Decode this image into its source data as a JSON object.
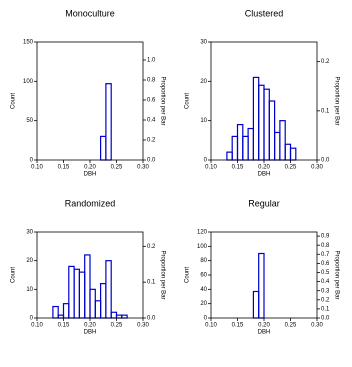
{
  "chart_data": [
    {
      "type": "histogram",
      "title": "Monoculture",
      "xlabel": "DBH",
      "ylabel": "Count",
      "y2label": "Proportion per Bar",
      "bins": [
        0.22,
        0.23,
        0.24
      ],
      "values": [
        30,
        97
      ],
      "color": "#0000cc",
      "xlim": [
        0.1,
        0.3
      ],
      "xticks": [
        {
          "value": 0.1,
          "label": "0.10"
        },
        0.15,
        {
          "value": 0.2,
          "label": "0.20"
        },
        0.25,
        {
          "value": 0.3,
          "label": "0.30"
        }
      ],
      "ylim": [
        0,
        150
      ],
      "yticks": [
        0,
        50,
        100,
        150
      ],
      "y2lim": [
        0,
        1.18
      ],
      "y2ticks": [
        {
          "value": 0,
          "label": "0.0"
        },
        0.2,
        0.4,
        0.6,
        0.8,
        {
          "value": 1,
          "label": "1.0"
        }
      ]
    },
    {
      "type": "histogram",
      "title": "Clustered",
      "xlabel": "DBH",
      "ylabel": "Count",
      "y2label": "Proportion per Bar",
      "bins": [
        0.13,
        0.14,
        0.15,
        0.16,
        0.17,
        0.18,
        0.19,
        0.2,
        0.21,
        0.22,
        0.23,
        0.24,
        0.25,
        0.26
      ],
      "values": [
        2,
        6,
        9,
        6,
        8,
        21,
        19,
        18,
        15,
        7,
        10,
        4,
        3
      ],
      "color": "#0000cc",
      "xlim": [
        0.1,
        0.3
      ],
      "xticks": [
        {
          "value": 0.1,
          "label": "0.10"
        },
        0.15,
        {
          "value": 0.2,
          "label": "0.20"
        },
        0.25,
        {
          "value": 0.3,
          "label": "0.30"
        }
      ],
      "ylim": [
        0,
        30
      ],
      "yticks": [
        0,
        10,
        20,
        30
      ],
      "y2lim": [
        0,
        0.24
      ],
      "y2ticks": [
        {
          "value": 0,
          "label": "0.0"
        },
        0.1,
        0.2
      ]
    },
    {
      "type": "histogram",
      "title": "Randomized",
      "xlabel": "DBH",
      "ylabel": "Count",
      "y2label": "Proportion per Bar",
      "bins": [
        0.13,
        0.14,
        0.15,
        0.16,
        0.17,
        0.18,
        0.19,
        0.2,
        0.21,
        0.22,
        0.23,
        0.24,
        0.25,
        0.26,
        0.27
      ],
      "values": [
        4,
        1,
        5,
        18,
        17,
        16,
        22,
        10,
        6,
        12,
        20,
        2,
        1,
        1
      ],
      "color": "#0000cc",
      "xlim": [
        0.1,
        0.3
      ],
      "xticks": [
        {
          "value": 0.1,
          "label": "0.10"
        },
        0.15,
        {
          "value": 0.2,
          "label": "0.20"
        },
        0.25,
        {
          "value": 0.3,
          "label": "0.30"
        }
      ],
      "ylim": [
        0,
        30
      ],
      "yticks": [
        0,
        10,
        20,
        30
      ],
      "y2lim": [
        0,
        0.24
      ],
      "y2ticks": [
        {
          "value": 0,
          "label": "0.0"
        },
        0.1,
        0.2
      ]
    },
    {
      "type": "histogram",
      "title": "Regular",
      "xlabel": "DBH",
      "ylabel": "Count",
      "y2label": "Proportion per Bar",
      "bins": [
        0.18,
        0.19,
        0.2
      ],
      "values": [
        37,
        90
      ],
      "color": "#0000cc",
      "xlim": [
        0.1,
        0.3
      ],
      "xticks": [
        {
          "value": 0.1,
          "label": "0.10"
        },
        0.15,
        {
          "value": 0.2,
          "label": "0.20"
        },
        0.25,
        {
          "value": 0.3,
          "label": "0.30"
        }
      ],
      "ylim": [
        0,
        120
      ],
      "yticks": [
        0,
        20,
        40,
        60,
        80,
        100,
        120
      ],
      "y2lim": [
        0,
        0.945
      ],
      "y2ticks": [
        {
          "value": 0,
          "label": "0.0"
        },
        0.1,
        0.2,
        0.3,
        0.4,
        0.5,
        0.6,
        0.7,
        0.8,
        0.9
      ]
    }
  ]
}
